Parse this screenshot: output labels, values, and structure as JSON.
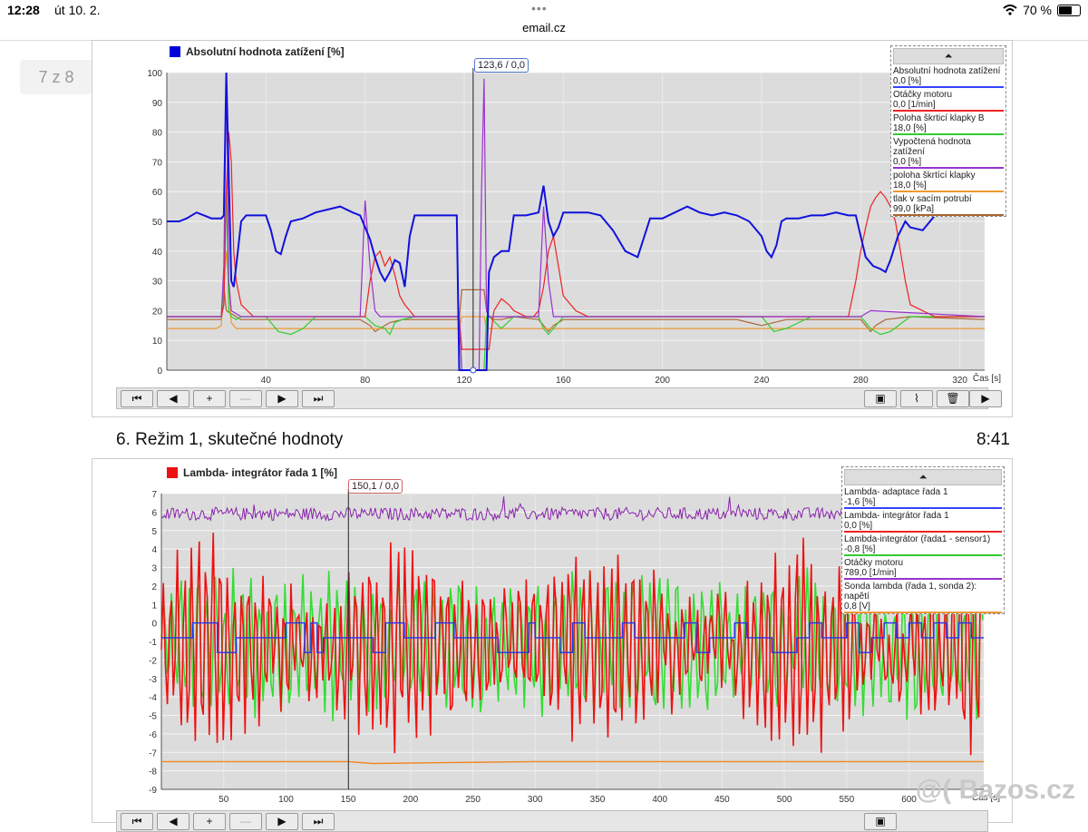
{
  "status": {
    "time": "12:28",
    "date": "út 10. 2.",
    "dots": "•••",
    "wifi_icon": "wifi-icon",
    "battery": "70 %",
    "battery_level": 0.7
  },
  "browser": {
    "url": "email.cz"
  },
  "pager": {
    "label": "7 z 8"
  },
  "chart1": {
    "title": "Absolutní hodnota zatížení [%]",
    "title_color": "#0000dd",
    "cursor": "123,6 / 0,0",
    "cursor_x": 123.6,
    "legend_toggle": "⏶",
    "legend": [
      {
        "name": "Absolutní hodnota zatížení",
        "value": "0,0 [%]",
        "color": "#3344ff"
      },
      {
        "name": "Otáčky motoru",
        "value": "0,0 [1/min]",
        "color": "#ee2222"
      },
      {
        "name": "Poloha škrticí klapky B",
        "value": "18,0 [%]",
        "color": "#33cc33"
      },
      {
        "name": "Vypočtená hodnota zatížení",
        "value": "0,0 [%]",
        "color": "#9933cc"
      },
      {
        "name": "poloha škrtící klapky",
        "value": "18,0 [%]",
        "color": "#ee9933"
      },
      {
        "name": "tlak v sacím potrubí",
        "value": "99,0 [kPa]",
        "color": "#aa6633"
      }
    ],
    "x_unit": "Čas [s]"
  },
  "chart2": {
    "title": "Lambda- integrátor řada 1 [%]",
    "title_color": "#ee1111",
    "cursor": "150,1 / 0,0",
    "cursor_x": 150.1,
    "legend_toggle": "⏶",
    "legend": [
      {
        "name": "Lambda- adaptace řada 1",
        "value": "-1,6 [%]",
        "color": "#3344ff"
      },
      {
        "name": "Lambda- integrátor řada 1",
        "value": "0,0 [%]",
        "color": "#ee2222"
      },
      {
        "name": "Lambda-integrátor (řada1 - sensor1)",
        "value": "-0,8 [%]",
        "color": "#33cc33"
      },
      {
        "name": "Otáčky motoru",
        "value": "789,0 [1/min]",
        "color": "#9933cc"
      },
      {
        "name": "Sonda lambda (řada 1, sonda 2): napětí",
        "value": "0,8 [V]",
        "color": "#ee9933"
      }
    ],
    "x_unit": "Čas [s]"
  },
  "caption": {
    "text": "6.  Režim 1, skutečné hodnoty",
    "time": "8:41"
  },
  "watermark": "@( Bazos.cz",
  "chart_data": [
    {
      "type": "line",
      "title": "Absolutní hodnota zatížení [%]",
      "xlabel": "Čas [s]",
      "ylabel": "",
      "xlim": [
        0,
        330
      ],
      "ylim": [
        0,
        100
      ],
      "x_ticks": [
        40,
        80,
        120,
        160,
        200,
        240,
        280,
        320
      ],
      "y_ticks": [
        0,
        10,
        20,
        30,
        40,
        50,
        60,
        70,
        80,
        90,
        100
      ],
      "grid": true,
      "legend_position": "top-right",
      "series": [
        {
          "name": "Absolutní hodnota zatížení",
          "color": "#1111dd",
          "x": [
            0,
            5,
            8,
            12,
            15,
            18,
            22,
            23,
            24,
            26,
            27,
            28,
            30,
            32,
            35,
            40,
            42,
            44,
            46,
            48,
            50,
            55,
            60,
            65,
            70,
            75,
            78,
            80,
            82,
            84,
            86,
            88,
            90,
            92,
            94,
            96,
            98,
            100,
            105,
            110,
            115,
            117,
            118,
            122,
            125,
            128,
            129,
            130,
            132,
            135,
            138,
            140,
            145,
            150,
            152,
            154,
            156,
            158,
            160,
            165,
            170,
            175,
            180,
            185,
            190,
            195,
            200,
            205,
            210,
            215,
            220,
            225,
            230,
            235,
            240,
            242,
            244,
            246,
            248,
            250,
            255,
            260,
            265,
            270,
            275,
            278,
            280,
            282,
            285,
            288,
            290,
            292,
            295,
            298,
            300,
            305,
            310,
            315,
            320,
            325,
            330
          ],
          "y": [
            50,
            50,
            51,
            53,
            52,
            51,
            51,
            52,
            100,
            30,
            28,
            35,
            50,
            52,
            52,
            52,
            47,
            40,
            39,
            45,
            50,
            51,
            53,
            54,
            55,
            53,
            52,
            48,
            44,
            38,
            33,
            30,
            33,
            37,
            36,
            28,
            45,
            52,
            52,
            52,
            52,
            52,
            0,
            0,
            0,
            0,
            0,
            33,
            38,
            40,
            40,
            52,
            52,
            53,
            62,
            50,
            45,
            48,
            53,
            53,
            53,
            52,
            47,
            40,
            38,
            51,
            51,
            53,
            55,
            53,
            52,
            53,
            52,
            50,
            45,
            40,
            38,
            42,
            50,
            51,
            51,
            52,
            52,
            53,
            52,
            52,
            45,
            38,
            35,
            34,
            33,
            37,
            45,
            50,
            48,
            47,
            52,
            53,
            52,
            52,
            52
          ]
        },
        {
          "name": "Otáčky motoru",
          "color": "#ee2222",
          "x": [
            0,
            20,
            22,
            23,
            24,
            25,
            26,
            27,
            28,
            30,
            35,
            40,
            50,
            60,
            70,
            80,
            82,
            84,
            86,
            88,
            90,
            92,
            94,
            96,
            98,
            100,
            105,
            110,
            115,
            117,
            118,
            119,
            120,
            122,
            128,
            129,
            130,
            132,
            135,
            138,
            140,
            145,
            148,
            150,
            152,
            154,
            156,
            158,
            160,
            165,
            170,
            200,
            240,
            260,
            270,
            275,
            278,
            280,
            282,
            284,
            286,
            288,
            290,
            292,
            294,
            296,
            298,
            300,
            305,
            310,
            330
          ],
          "y": [
            18,
            18,
            18,
            22,
            60,
            80,
            70,
            40,
            30,
            22,
            18,
            18,
            18,
            18,
            18,
            18,
            30,
            38,
            40,
            35,
            38,
            32,
            25,
            22,
            20,
            18,
            18,
            18,
            18,
            18,
            18,
            7,
            7,
            7,
            7,
            7,
            7,
            20,
            24,
            22,
            20,
            18,
            18,
            20,
            28,
            40,
            45,
            35,
            25,
            20,
            18,
            18,
            18,
            18,
            18,
            18,
            30,
            40,
            48,
            55,
            58,
            60,
            58,
            55,
            50,
            40,
            30,
            22,
            20,
            18,
            18
          ]
        },
        {
          "name": "Poloha škrticí klapky B",
          "color": "#33cc33",
          "x": [
            0,
            20,
            22,
            23,
            24,
            25,
            26,
            28,
            30,
            40,
            45,
            50,
            55,
            60,
            80,
            84,
            88,
            90,
            92,
            95,
            100,
            118,
            119,
            128,
            129,
            130,
            135,
            140,
            150,
            152,
            154,
            156,
            160,
            200,
            210,
            240,
            245,
            250,
            260,
            280,
            284,
            288,
            292,
            300,
            330
          ],
          "y": [
            18,
            18,
            18,
            30,
            60,
            20,
            18,
            17,
            18,
            18,
            13,
            12,
            14,
            18,
            18,
            15,
            14,
            12,
            16,
            17,
            18,
            18,
            0,
            0,
            18,
            18,
            14,
            18,
            18,
            14,
            12,
            14,
            18,
            18,
            18,
            18,
            13,
            14,
            18,
            18,
            14,
            12,
            13,
            18,
            18
          ]
        },
        {
          "name": "Vypočtená hodnota zatížení",
          "color": "#9933cc",
          "x": [
            0,
            20,
            22,
            23,
            24,
            25,
            26,
            28,
            30,
            40,
            78,
            80,
            82,
            84,
            86,
            100,
            118,
            119,
            126,
            127,
            128,
            129,
            130,
            135,
            150,
            152,
            154,
            156,
            200,
            260,
            280,
            284,
            330
          ],
          "y": [
            18,
            18,
            18,
            35,
            100,
            30,
            20,
            19,
            18,
            18,
            18,
            57,
            35,
            20,
            18,
            18,
            18,
            0,
            0,
            60,
            98,
            20,
            18,
            18,
            18,
            55,
            30,
            18,
            18,
            18,
            18,
            20,
            18
          ]
        },
        {
          "name": "poloha škrtící klapky",
          "color": "#ee9933",
          "x": [
            0,
            20,
            22,
            24,
            26,
            28,
            40,
            100,
            118,
            119,
            128,
            129,
            130,
            200,
            330
          ],
          "y": [
            14,
            14,
            15,
            40,
            16,
            14,
            14,
            14,
            14,
            18,
            18,
            14,
            14,
            14,
            14
          ]
        },
        {
          "name": "tlak v sacím potrubí",
          "color": "#aa6633",
          "x": [
            0,
            20,
            22,
            23,
            24,
            26,
            28,
            30,
            40,
            60,
            70,
            78,
            80,
            82,
            84,
            86,
            88,
            90,
            95,
            100,
            118,
            119,
            128,
            129,
            130,
            132,
            135,
            140,
            150,
            152,
            154,
            156,
            160,
            200,
            230,
            235,
            240,
            250,
            270,
            280,
            282,
            284,
            286,
            290,
            300,
            330
          ],
          "y": [
            17,
            17,
            17,
            28,
            20,
            19,
            18,
            17,
            17,
            17,
            17,
            17,
            16,
            15,
            13,
            14,
            15,
            16,
            17,
            17,
            17,
            27,
            27,
            20,
            18,
            17,
            17,
            18,
            17,
            15,
            13,
            15,
            17,
            17,
            17,
            16,
            15,
            17,
            17,
            17,
            15,
            13,
            15,
            17,
            18,
            17
          ]
        }
      ]
    },
    {
      "type": "line",
      "title": "Lambda- integrátor řada 1 [%]",
      "xlabel": "Čas [s]",
      "ylabel": "",
      "xlim": [
        0,
        660
      ],
      "ylim": [
        -9,
        7
      ],
      "x_ticks": [
        50,
        100,
        150,
        200,
        250,
        300,
        350,
        400,
        450,
        500,
        550,
        600
      ],
      "y_ticks": [
        7,
        6,
        5,
        4,
        3,
        2,
        1,
        0,
        -1,
        -2,
        -3,
        -4,
        -5,
        -6,
        -7,
        -8,
        -9
      ],
      "grid": true,
      "legend_position": "top-right",
      "series": [
        {
          "name": "Lambda- adaptace řada 1",
          "color": "#2233ee",
          "x": [
            0,
            20,
            25,
            40,
            45,
            60,
            70,
            90,
            100,
            110,
            115,
            120,
            125,
            130,
            150,
            160,
            170,
            180,
            195,
            210,
            220,
            235,
            240,
            260,
            270,
            280,
            290,
            295,
            300,
            310,
            320,
            330,
            340,
            350,
            360,
            370,
            380,
            390,
            400,
            410,
            420,
            430,
            440,
            450,
            460,
            470,
            480,
            490,
            500,
            510,
            520,
            530,
            540,
            550,
            560,
            570,
            580,
            590,
            600,
            610,
            620,
            630,
            640,
            650,
            660
          ],
          "y": [
            -0.8,
            -0.8,
            0,
            0,
            -1.6,
            -0.8,
            -0.8,
            -0.8,
            0,
            0,
            -1.6,
            0,
            -1.6,
            -0.8,
            -0.8,
            -0.8,
            -1.6,
            0,
            -0.8,
            -0.8,
            0,
            -0.8,
            -0.8,
            -0.8,
            -1.6,
            -1.6,
            -1.6,
            0,
            -0.8,
            -0.8,
            -1.6,
            0,
            -0.8,
            -0.8,
            -0.8,
            0,
            -0.8,
            -0.8,
            -0.8,
            -0.8,
            0,
            -1.6,
            -0.8,
            -0.8,
            0,
            -0.8,
            -0.8,
            -1.6,
            -1.6,
            -0.8,
            0,
            -0.8,
            -0.8,
            0,
            -1.6,
            -0.8,
            0,
            -0.8,
            0,
            -0.8,
            0,
            -0.8,
            0,
            -0.8,
            -0.8
          ]
        },
        {
          "name": "Otáčky motoru",
          "color": "#8822aa",
          "baseline": 5.9,
          "jitter": 0.35
        },
        {
          "name": "Sonda lambda (řada 1, sonda 2): napětí",
          "color": "#ee8822",
          "x": [
            0,
            100,
            150,
            170,
            300,
            660
          ],
          "y": [
            -7.5,
            -7.5,
            -7.5,
            -7.6,
            -7.5,
            -7.5
          ]
        },
        {
          "name": "Lambda- integrátor řada 1",
          "color": "#ee1111",
          "range": [
            -8.5,
            6.5
          ],
          "oscillating": true
        },
        {
          "name": "Lambda-integrátor (řada1 - sensor1)",
          "color": "#33dd33",
          "range": [
            -7,
            4
          ],
          "oscillating": true
        }
      ]
    }
  ]
}
